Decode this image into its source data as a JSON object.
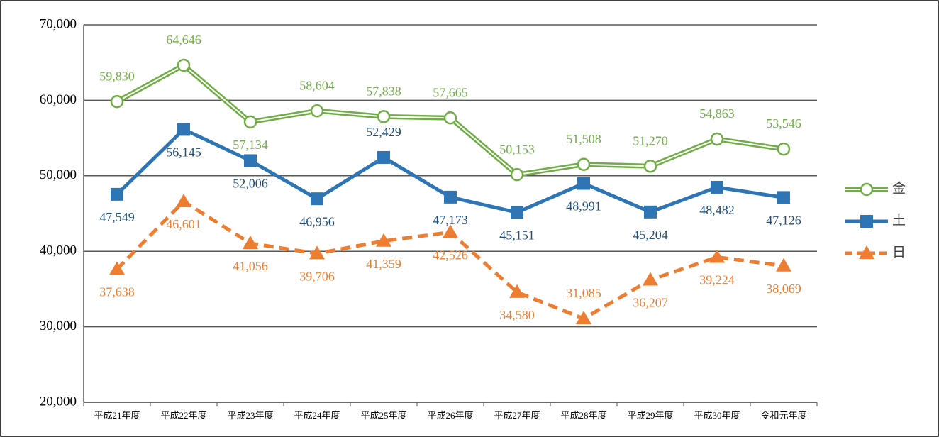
{
  "chart_data": {
    "type": "line",
    "categories": [
      "平成21年度",
      "平成22年度",
      "平成23年度",
      "平成24年度",
      "平成25年度",
      "平成26年度",
      "平成27年度",
      "平成28年度",
      "平成29年度",
      "平成30年度",
      "令和元年度"
    ],
    "series": [
      {
        "name": "金",
        "color": "#70ad47",
        "label_color": "#70ad47",
        "marker": "circle",
        "line_style": "double",
        "values": [
          59830,
          64646,
          57134,
          58604,
          57838,
          57665,
          50153,
          51508,
          51270,
          54863,
          53546
        ],
        "value_labels": [
          "59,830",
          "64,646",
          "57,134",
          "58,604",
          "57,838",
          "57,665",
          "50,153",
          "51,508",
          "51,270",
          "54,863",
          "53,546"
        ]
      },
      {
        "name": "土",
        "color": "#2e75b6",
        "label_color": "#1f4e79",
        "marker": "square",
        "line_style": "solid",
        "values": [
          47549,
          56145,
          52006,
          46956,
          52429,
          47173,
          45151,
          48991,
          45204,
          48482,
          47126
        ],
        "value_labels": [
          "47,549",
          "56,145",
          "52,006",
          "46,956",
          "52,429",
          "47,173",
          "45,151",
          "48,991",
          "45,204",
          "48,482",
          "47,126"
        ]
      },
      {
        "name": "日",
        "color": "#ed7d31",
        "label_color": "#ed7d31",
        "marker": "triangle",
        "line_style": "dashed",
        "values": [
          37638,
          46601,
          41056,
          39706,
          41359,
          42526,
          34580,
          31085,
          36207,
          39224,
          38069
        ],
        "value_labels": [
          "37,638",
          "46,601",
          "41,056",
          "39,706",
          "41,359",
          "42,526",
          "34,580",
          "31,085",
          "36,207",
          "39,224",
          "38,069"
        ]
      }
    ],
    "ylim": [
      20000,
      70000
    ],
    "yticks": [
      {
        "value": 20000,
        "label": "20,000"
      },
      {
        "value": 30000,
        "label": "30,000"
      },
      {
        "value": 40000,
        "label": "40,000"
      },
      {
        "value": 50000,
        "label": "50,000"
      },
      {
        "value": 60000,
        "label": "60,000"
      },
      {
        "value": 70000,
        "label": "70,000"
      }
    ],
    "grid": true,
    "legend": "right"
  }
}
